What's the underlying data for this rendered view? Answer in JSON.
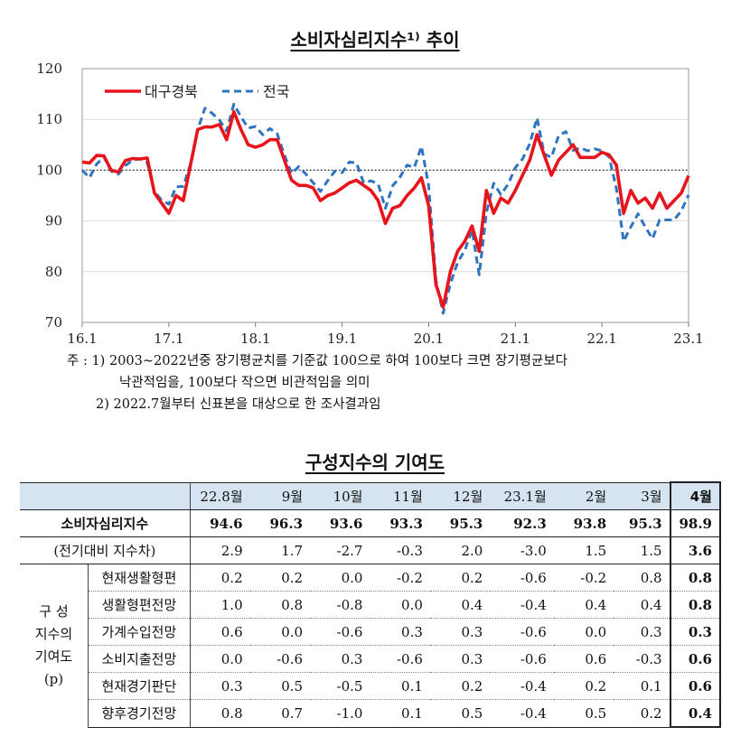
{
  "chart_title": "소비자심리지수¹⁾ 추이",
  "chart_data": {
    "type": "line",
    "title": "소비자심리지수¹⁾ 추이",
    "x_ticks": [
      "16.1",
      "17.1",
      "18.1",
      "19.1",
      "20.1",
      "21.1",
      "22.1",
      "23.1"
    ],
    "y_ticks": [
      "70",
      "80",
      "90",
      "100",
      "110",
      "120"
    ],
    "ylim": [
      70,
      120
    ],
    "x_start": "2016.1",
    "reference_line": 100,
    "legend_position": "top-left",
    "series": [
      {
        "name": "대구경북",
        "color": "#e8141c",
        "style": "solid",
        "values": [
          101.6,
          101.4,
          102.9,
          102.8,
          100.0,
          99.6,
          101.9,
          102.3,
          102.2,
          102.4,
          95.5,
          93.5,
          91.5,
          95.0,
          94.0,
          101.0,
          108.0,
          108.5,
          108.5,
          109.0,
          106.0,
          111.5,
          108.0,
          105.0,
          104.5,
          105.0,
          106.0,
          106.0,
          102.0,
          98.0,
          97.0,
          97.0,
          96.5,
          94.0,
          95.0,
          95.5,
          96.5,
          97.5,
          98.0,
          97.0,
          96.0,
          94.0,
          89.5,
          92.5,
          93.0,
          95.0,
          96.5,
          98.5,
          93.0,
          77.5,
          73.0,
          80.0,
          84.0,
          86.0,
          89.0,
          84.0,
          96.0,
          91.5,
          94.5,
          93.5,
          96.0,
          99.0,
          102.0,
          107.0,
          103.0,
          99.0,
          102.0,
          103.5,
          105.0,
          102.5,
          102.5,
          102.5,
          103.5,
          103.0,
          101.0,
          91.5,
          96.0,
          93.5,
          94.5,
          92.5,
          95.5,
          92.5,
          94.0,
          95.5,
          98.9
        ]
      },
      {
        "name": "전국",
        "color": "#2f74c0",
        "style": "dashed",
        "values": [
          100.0,
          98.5,
          101.2,
          102.6,
          99.8,
          99.2,
          100.9,
          102.0,
          102.2,
          101.5,
          95.8,
          94.1,
          93.3,
          96.7,
          96.8,
          101.2,
          108.0,
          112.2,
          111.2,
          109.9,
          107.7,
          113.0,
          110.5,
          108.3,
          108.6,
          107.0,
          108.2,
          107.2,
          103.0,
          99.3,
          100.7,
          99.2,
          97.5,
          95.8,
          97.9,
          99.8,
          99.5,
          101.6,
          101.4,
          97.5,
          97.9,
          97.3,
          92.5,
          96.9,
          98.6,
          101.0,
          100.5,
          104.7,
          96.9,
          78.4,
          71.8,
          77.6,
          81.8,
          84.2,
          88.2,
          79.4,
          91.6,
          97.4,
          95.2,
          97.2,
          100.5,
          102.2,
          105.2,
          110.3,
          103.2,
          102.5,
          106.8,
          107.6,
          103.9,
          104.4,
          103.8,
          104.2,
          103.8,
          102.6,
          96.4,
          86.0,
          88.8,
          91.4,
          88.8,
          86.5,
          90.2,
          90.2,
          90.2,
          92.0,
          95.1
        ]
      }
    ]
  },
  "notes": {
    "prefix": "주 : 1)",
    "note1_line1": "2003~2022년중 장기평균치를 기준값 100으로 하여 100보다 크면 장기평균보다",
    "note1_line2": "낙관적임을, 100보다 작으면 비관적임을 의미",
    "note2": "2) 2022.7월부터 신표본을 대상으로 한 조사결과임"
  },
  "table": {
    "title": "구성지수의 기여도",
    "columns": [
      "22.8월",
      "9월",
      "10월",
      "11월",
      "12월",
      "23.1월",
      "2월",
      "3월",
      "4월"
    ],
    "main_row": {
      "label": "소비자심리지수",
      "values": [
        "94.6",
        "96.3",
        "93.6",
        "93.3",
        "95.3",
        "92.3",
        "93.8",
        "95.3",
        "98.9"
      ]
    },
    "diff_row": {
      "label": "(전기대비 지수차)",
      "values": [
        "2.9",
        "1.7",
        "-2.7",
        "-0.3",
        "2.0",
        "-3.0",
        "1.5",
        "1.5",
        "3.6"
      ]
    },
    "component_group": {
      "line1": "구 성",
      "line2": "지수의",
      "line3": "기여도",
      "line4": "(p)"
    },
    "components": [
      {
        "name": "현재생활형편",
        "values": [
          "0.2",
          "0.2",
          "0.0",
          "-0.2",
          "0.2",
          "-0.6",
          "-0.2",
          "0.8",
          "0.8"
        ]
      },
      {
        "name": "생활형편전망",
        "values": [
          "1.0",
          "0.8",
          "-0.8",
          "0.0",
          "0.4",
          "-0.4",
          "0.4",
          "0.4",
          "0.8"
        ]
      },
      {
        "name": "가계수입전망",
        "values": [
          "0.6",
          "0.0",
          "-0.6",
          "0.3",
          "0.3",
          "-0.6",
          "0.0",
          "0.3",
          "0.3"
        ]
      },
      {
        "name": "소비지출전망",
        "values": [
          "0.0",
          "-0.6",
          "0.3",
          "-0.6",
          "0.3",
          "-0.6",
          "0.6",
          "-0.3",
          "0.6"
        ]
      },
      {
        "name": "현재경기판단",
        "values": [
          "0.3",
          "0.5",
          "-0.5",
          "0.1",
          "0.2",
          "-0.4",
          "0.2",
          "0.1",
          "0.6"
        ]
      },
      {
        "name": "향후경기전망",
        "values": [
          "0.8",
          "0.7",
          "-1.0",
          "0.1",
          "0.5",
          "-0.4",
          "0.5",
          "0.2",
          "0.4"
        ]
      }
    ]
  }
}
